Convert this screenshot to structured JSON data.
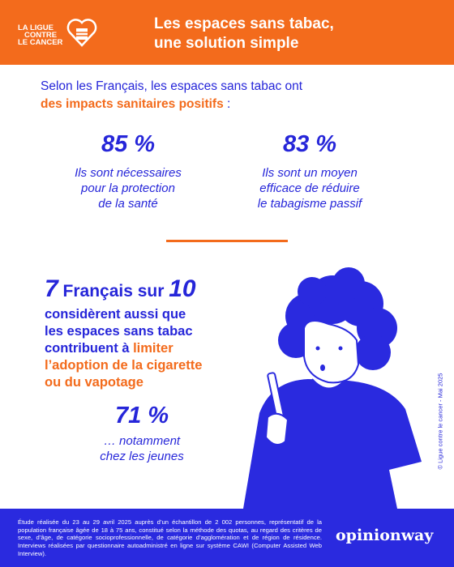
{
  "header": {
    "logo": [
      "LA LIGUE",
      "CONTRE",
      "LE CANCER"
    ],
    "title": [
      "Les espaces sans tabac,",
      "une solution simple"
    ]
  },
  "intro": {
    "text": "Selon les Français, les espaces sans tabac ont",
    "highlight": "des impacts sanitaires positifs",
    "tail": " :"
  },
  "stats": [
    {
      "value": "85 %",
      "lines": [
        "Ils sont nécessaires",
        "pour la protection",
        "de la santé"
      ]
    },
    {
      "value": "83 %",
      "lines": [
        "Ils sont un moyen",
        "efficace de réduire",
        "le tabagisme passif"
      ]
    }
  ],
  "headline": {
    "number1": "7",
    "middle": " Français sur ",
    "number2": "10"
  },
  "body": {
    "line1": "considèrent aussi que",
    "line2": "les espaces sans tabac",
    "line3": "contribuent à ",
    "line3_highlight": "limiter",
    "line4": "l’adoption de la cigarette",
    "line5": "ou du vapotage"
  },
  "youth": {
    "value": "71 %",
    "lines": [
      "… notamment",
      "chez les jeunes"
    ]
  },
  "copyright": "© Ligue contre le cancer - Mai 2025",
  "footer": {
    "methodology": "Étude réalisée du 23 au 29 avril 2025 auprès d’un échantillon de 2 002 personnes, représentatif de la population française âgée de 18 à 75 ans, constitué selon la méthode des quotas, au regard des critères de sexe, d’âge, de catégorie socioprofessionnelle, de catégorie d’agglomération et de région de résidence. Interviews réalisées par questionnaire autoadministré en ligne sur système CAWI (Computer Assisted Web Interview).",
    "brand": "opinionway"
  }
}
